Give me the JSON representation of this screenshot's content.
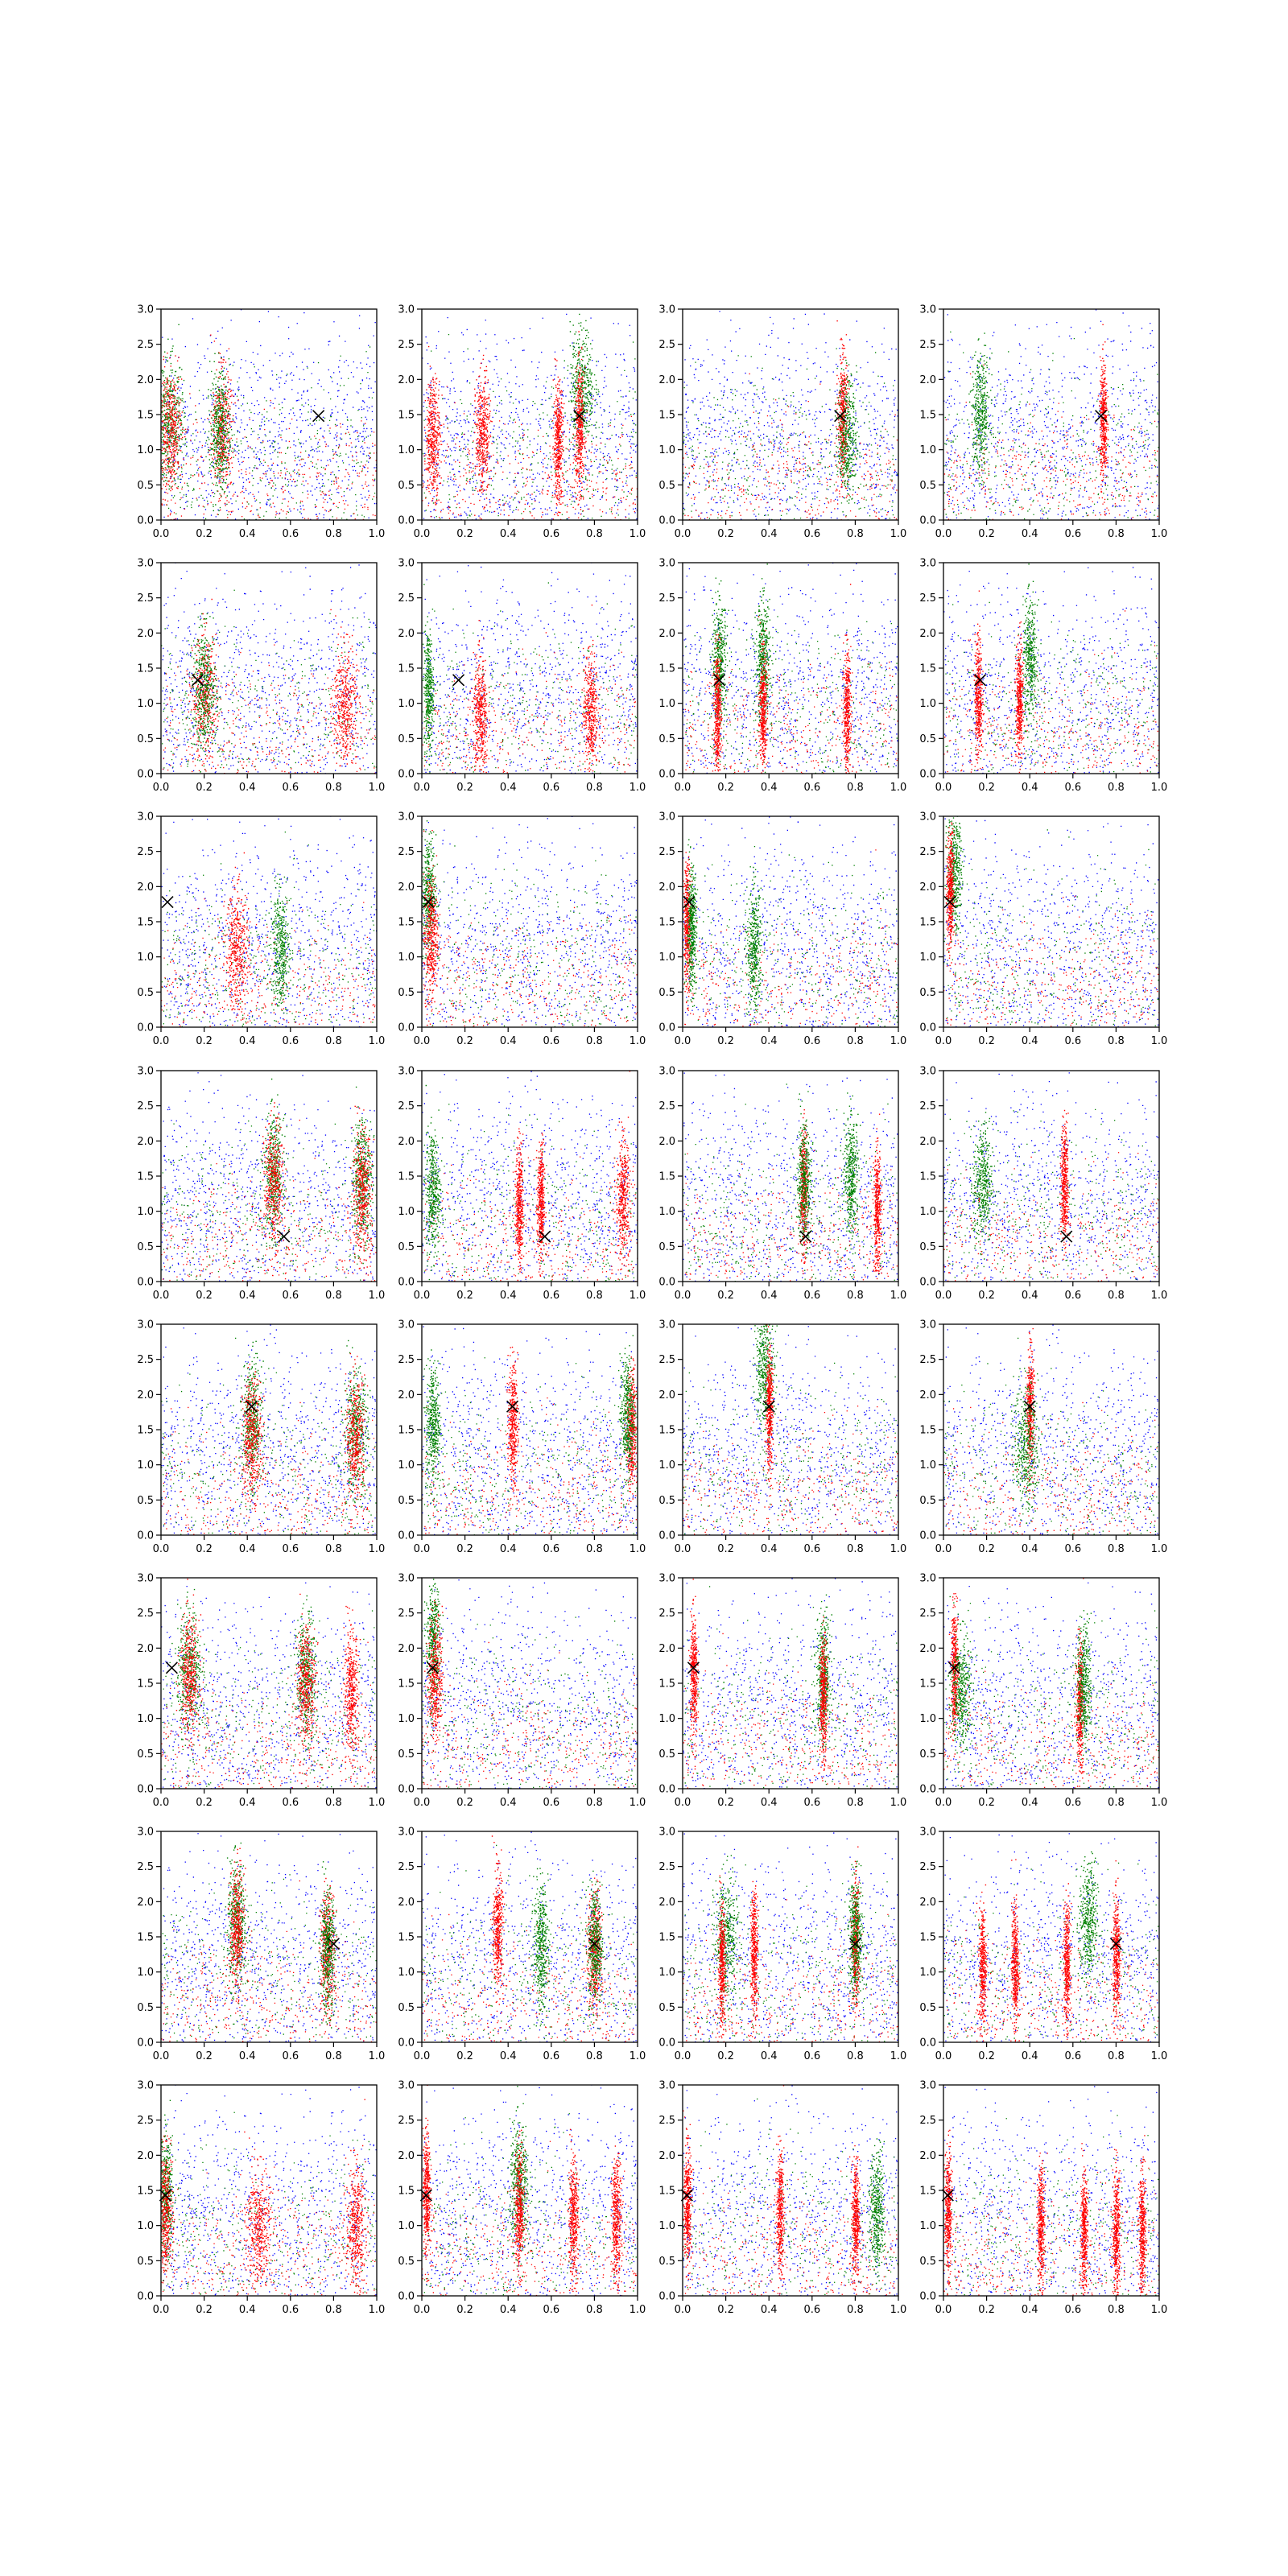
{
  "figure": {
    "rows": 8,
    "cols": 4,
    "colors": {
      "background": "#ffffff",
      "blue": "#0000ff",
      "green": "#008000",
      "red": "#ff0000",
      "marker": "#000000",
      "axes": "#000000"
    }
  },
  "chart_data": {
    "type": "scatter",
    "xlim": [
      0,
      1.0
    ],
    "ylim": [
      0,
      3.0
    ],
    "grid": false,
    "legend": "none",
    "xticks": [
      "0.0",
      "0.2",
      "0.4",
      "0.6",
      "0.8",
      "1.0"
    ],
    "yticks": [
      "0.0",
      "0.5",
      "1.0",
      "1.5",
      "2.0",
      "2.5",
      "3.0"
    ],
    "series_colors": [
      "blue",
      "green",
      "red"
    ],
    "note_points": "each panel shows dense random scatter in blue, green and red; vertical clusters listed per panel; black x marker per row",
    "panels": [
      {
        "row": 0,
        "col": 0,
        "marker": [
          0.73,
          1.48
        ],
        "clusters": [
          {
            "x": 0.04,
            "y": 1.4,
            "c": "green",
            "w": 0.06
          },
          {
            "x": 0.04,
            "y": 1.3,
            "c": "red",
            "w": 0.05
          },
          {
            "x": 0.28,
            "y": 1.3,
            "c": "red",
            "w": 0.04
          },
          {
            "x": 0.27,
            "y": 1.3,
            "c": "green",
            "w": 0.04
          }
        ]
      },
      {
        "row": 0,
        "col": 1,
        "marker": [
          0.73,
          1.48
        ],
        "clusters": [
          {
            "x": 0.74,
            "y": 1.9,
            "c": "green",
            "w": 0.05
          },
          {
            "x": 0.73,
            "y": 1.3,
            "c": "red",
            "w": 0.02
          },
          {
            "x": 0.28,
            "y": 1.2,
            "c": "red",
            "w": 0.03
          },
          {
            "x": 0.05,
            "y": 1.2,
            "c": "red",
            "w": 0.03
          },
          {
            "x": 0.63,
            "y": 1.1,
            "c": "red",
            "w": 0.02
          }
        ]
      },
      {
        "row": 0,
        "col": 2,
        "marker": [
          0.73,
          1.48
        ],
        "clusters": [
          {
            "x": 0.74,
            "y": 1.5,
            "c": "red",
            "w": 0.02
          },
          {
            "x": 0.76,
            "y": 1.2,
            "c": "green",
            "w": 0.04
          }
        ]
      },
      {
        "row": 0,
        "col": 3,
        "marker": [
          0.73,
          1.48
        ],
        "clusters": [
          {
            "x": 0.74,
            "y": 1.4,
            "c": "red",
            "w": 0.015
          },
          {
            "x": 0.17,
            "y": 1.5,
            "c": "green",
            "w": 0.04
          }
        ]
      },
      {
        "row": 1,
        "col": 0,
        "marker": [
          0.17,
          1.33
        ],
        "clusters": [
          {
            "x": 0.2,
            "y": 1.1,
            "c": "red",
            "w": 0.05
          },
          {
            "x": 0.2,
            "y": 1.2,
            "c": "green",
            "w": 0.05
          },
          {
            "x": 0.85,
            "y": 1.0,
            "c": "red",
            "w": 0.05
          }
        ]
      },
      {
        "row": 1,
        "col": 1,
        "marker": [
          0.17,
          1.33
        ],
        "clusters": [
          {
            "x": 0.03,
            "y": 1.2,
            "c": "green",
            "w": 0.02
          },
          {
            "x": 0.78,
            "y": 0.9,
            "c": "red",
            "w": 0.03
          },
          {
            "x": 0.27,
            "y": 0.8,
            "c": "red",
            "w": 0.03
          }
        ]
      },
      {
        "row": 1,
        "col": 2,
        "marker": [
          0.17,
          1.33
        ],
        "clusters": [
          {
            "x": 0.17,
            "y": 1.6,
            "c": "green",
            "w": 0.03
          },
          {
            "x": 0.37,
            "y": 1.6,
            "c": "green",
            "w": 0.03
          },
          {
            "x": 0.16,
            "y": 0.9,
            "c": "red",
            "w": 0.015
          },
          {
            "x": 0.37,
            "y": 0.9,
            "c": "red",
            "w": 0.015
          },
          {
            "x": 0.76,
            "y": 0.9,
            "c": "red",
            "w": 0.015
          }
        ]
      },
      {
        "row": 1,
        "col": 3,
        "marker": [
          0.17,
          1.33
        ],
        "clusters": [
          {
            "x": 0.16,
            "y": 1.1,
            "c": "red",
            "w": 0.015
          },
          {
            "x": 0.4,
            "y": 1.6,
            "c": "green",
            "w": 0.03
          },
          {
            "x": 0.35,
            "y": 1.0,
            "c": "red",
            "w": 0.015
          }
        ]
      },
      {
        "row": 2,
        "col": 0,
        "marker": [
          0.03,
          1.78
        ],
        "clusters": [
          {
            "x": 0.35,
            "y": 1.1,
            "c": "red",
            "w": 0.05
          },
          {
            "x": 0.55,
            "y": 1.1,
            "c": "green",
            "w": 0.04
          }
        ]
      },
      {
        "row": 2,
        "col": 1,
        "marker": [
          0.03,
          1.78
        ],
        "clusters": [
          {
            "x": 0.03,
            "y": 1.9,
            "c": "green",
            "w": 0.03
          },
          {
            "x": 0.04,
            "y": 1.3,
            "c": "red",
            "w": 0.03
          }
        ]
      },
      {
        "row": 2,
        "col": 2,
        "marker": [
          0.03,
          1.78
        ],
        "clusters": [
          {
            "x": 0.02,
            "y": 1.5,
            "c": "red",
            "w": 0.015
          },
          {
            "x": 0.04,
            "y": 1.4,
            "c": "green",
            "w": 0.02
          },
          {
            "x": 0.33,
            "y": 1.1,
            "c": "green",
            "w": 0.03
          }
        ]
      },
      {
        "row": 2,
        "col": 3,
        "marker": [
          0.03,
          1.78
        ],
        "clusters": [
          {
            "x": 0.05,
            "y": 2.3,
            "c": "green",
            "w": 0.03
          },
          {
            "x": 0.03,
            "y": 1.9,
            "c": "red",
            "w": 0.015
          }
        ]
      },
      {
        "row": 3,
        "col": 0,
        "marker": [
          0.57,
          0.64
        ],
        "clusters": [
          {
            "x": 0.52,
            "y": 1.5,
            "c": "green",
            "w": 0.04
          },
          {
            "x": 0.52,
            "y": 1.4,
            "c": "red",
            "w": 0.04
          },
          {
            "x": 0.93,
            "y": 1.5,
            "c": "green",
            "w": 0.04
          },
          {
            "x": 0.93,
            "y": 1.3,
            "c": "red",
            "w": 0.04
          }
        ]
      },
      {
        "row": 3,
        "col": 1,
        "marker": [
          0.57,
          0.64
        ],
        "clusters": [
          {
            "x": 0.93,
            "y": 1.2,
            "c": "red",
            "w": 0.03
          },
          {
            "x": 0.45,
            "y": 1.1,
            "c": "red",
            "w": 0.015
          },
          {
            "x": 0.55,
            "y": 1.1,
            "c": "red",
            "w": 0.015
          },
          {
            "x": 0.05,
            "y": 1.3,
            "c": "green",
            "w": 0.03
          }
        ]
      },
      {
        "row": 3,
        "col": 2,
        "marker": [
          0.57,
          0.64
        ],
        "clusters": [
          {
            "x": 0.56,
            "y": 1.3,
            "c": "red",
            "w": 0.015
          },
          {
            "x": 0.56,
            "y": 1.4,
            "c": "green",
            "w": 0.03
          },
          {
            "x": 0.78,
            "y": 1.5,
            "c": "green",
            "w": 0.03
          },
          {
            "x": 0.9,
            "y": 1.0,
            "c": "red",
            "w": 0.015
          }
        ]
      },
      {
        "row": 3,
        "col": 3,
        "marker": [
          0.57,
          0.64
        ],
        "clusters": [
          {
            "x": 0.56,
            "y": 1.4,
            "c": "red",
            "w": 0.015
          },
          {
            "x": 0.18,
            "y": 1.4,
            "c": "green",
            "w": 0.04
          }
        ]
      },
      {
        "row": 4,
        "col": 0,
        "marker": [
          0.42,
          1.83
        ],
        "clusters": [
          {
            "x": 0.42,
            "y": 1.6,
            "c": "green",
            "w": 0.04
          },
          {
            "x": 0.42,
            "y": 1.4,
            "c": "red",
            "w": 0.04
          },
          {
            "x": 0.9,
            "y": 1.5,
            "c": "green",
            "w": 0.05
          },
          {
            "x": 0.9,
            "y": 1.4,
            "c": "red",
            "w": 0.04
          }
        ]
      },
      {
        "row": 4,
        "col": 1,
        "marker": [
          0.42,
          1.83
        ],
        "clusters": [
          {
            "x": 0.42,
            "y": 1.6,
            "c": "red",
            "w": 0.02
          },
          {
            "x": 0.97,
            "y": 1.5,
            "c": "red",
            "w": 0.02
          },
          {
            "x": 0.05,
            "y": 1.6,
            "c": "green",
            "w": 0.03
          },
          {
            "x": 0.95,
            "y": 1.7,
            "c": "green",
            "w": 0.03
          }
        ]
      },
      {
        "row": 4,
        "col": 2,
        "marker": [
          0.4,
          1.83
        ],
        "clusters": [
          {
            "x": 0.38,
            "y": 2.4,
            "c": "green",
            "w": 0.04
          },
          {
            "x": 0.4,
            "y": 1.8,
            "c": "red",
            "w": 0.015
          }
        ]
      },
      {
        "row": 4,
        "col": 3,
        "marker": [
          0.4,
          1.83
        ],
        "clusters": [
          {
            "x": 0.4,
            "y": 1.8,
            "c": "red",
            "w": 0.015
          },
          {
            "x": 0.38,
            "y": 1.3,
            "c": "green",
            "w": 0.05
          }
        ]
      },
      {
        "row": 5,
        "col": 0,
        "marker": [
          0.05,
          1.72
        ],
        "clusters": [
          {
            "x": 0.13,
            "y": 1.7,
            "c": "green",
            "w": 0.05
          },
          {
            "x": 0.13,
            "y": 1.6,
            "c": "red",
            "w": 0.04
          },
          {
            "x": 0.67,
            "y": 1.6,
            "c": "green",
            "w": 0.04
          },
          {
            "x": 0.67,
            "y": 1.5,
            "c": "red",
            "w": 0.04
          },
          {
            "x": 0.88,
            "y": 1.4,
            "c": "red",
            "w": 0.03
          }
        ]
      },
      {
        "row": 5,
        "col": 1,
        "marker": [
          0.05,
          1.72
        ],
        "clusters": [
          {
            "x": 0.05,
            "y": 2.1,
            "c": "green",
            "w": 0.03
          },
          {
            "x": 0.06,
            "y": 1.6,
            "c": "red",
            "w": 0.03
          }
        ]
      },
      {
        "row": 5,
        "col": 2,
        "marker": [
          0.05,
          1.72
        ],
        "clusters": [
          {
            "x": 0.05,
            "y": 1.6,
            "c": "red",
            "w": 0.015
          },
          {
            "x": 0.65,
            "y": 1.6,
            "c": "green",
            "w": 0.03
          },
          {
            "x": 0.65,
            "y": 1.3,
            "c": "red",
            "w": 0.015
          }
        ]
      },
      {
        "row": 5,
        "col": 3,
        "marker": [
          0.05,
          1.72
        ],
        "clusters": [
          {
            "x": 0.05,
            "y": 1.7,
            "c": "red",
            "w": 0.015
          },
          {
            "x": 0.08,
            "y": 1.4,
            "c": "green",
            "w": 0.04
          },
          {
            "x": 0.63,
            "y": 1.2,
            "c": "red",
            "w": 0.015
          },
          {
            "x": 0.65,
            "y": 1.5,
            "c": "green",
            "w": 0.03
          }
        ]
      },
      {
        "row": 6,
        "col": 0,
        "marker": [
          0.8,
          1.4
        ],
        "clusters": [
          {
            "x": 0.35,
            "y": 1.7,
            "c": "green",
            "w": 0.04
          },
          {
            "x": 0.35,
            "y": 1.6,
            "c": "red",
            "w": 0.03
          },
          {
            "x": 0.77,
            "y": 1.3,
            "c": "red",
            "w": 0.03
          },
          {
            "x": 0.77,
            "y": 1.3,
            "c": "green",
            "w": 0.03
          }
        ]
      },
      {
        "row": 6,
        "col": 1,
        "marker": [
          0.8,
          1.4
        ],
        "clusters": [
          {
            "x": 0.35,
            "y": 1.6,
            "c": "red",
            "w": 0.02
          },
          {
            "x": 0.55,
            "y": 1.4,
            "c": "green",
            "w": 0.03
          },
          {
            "x": 0.8,
            "y": 1.3,
            "c": "red",
            "w": 0.03
          },
          {
            "x": 0.8,
            "y": 1.4,
            "c": "green",
            "w": 0.03
          }
        ]
      },
      {
        "row": 6,
        "col": 2,
        "marker": [
          0.8,
          1.4
        ],
        "clusters": [
          {
            "x": 0.2,
            "y": 1.5,
            "c": "green",
            "w": 0.05
          },
          {
            "x": 0.33,
            "y": 1.3,
            "c": "red",
            "w": 0.015
          },
          {
            "x": 0.18,
            "y": 1.1,
            "c": "red",
            "w": 0.015
          },
          {
            "x": 0.8,
            "y": 1.4,
            "c": "red",
            "w": 0.015
          },
          {
            "x": 0.8,
            "y": 1.5,
            "c": "green",
            "w": 0.03
          }
        ]
      },
      {
        "row": 6,
        "col": 3,
        "marker": [
          0.8,
          1.4
        ],
        "clusters": [
          {
            "x": 0.67,
            "y": 1.7,
            "c": "green",
            "w": 0.04
          },
          {
            "x": 0.18,
            "y": 1.1,
            "c": "red",
            "w": 0.015
          },
          {
            "x": 0.33,
            "y": 1.1,
            "c": "red",
            "w": 0.015
          },
          {
            "x": 0.8,
            "y": 1.2,
            "c": "red",
            "w": 0.015
          },
          {
            "x": 0.57,
            "y": 1.1,
            "c": "red",
            "w": 0.015
          }
        ]
      },
      {
        "row": 7,
        "col": 0,
        "marker": [
          0.02,
          1.43
        ],
        "clusters": [
          {
            "x": 0.02,
            "y": 1.4,
            "c": "green",
            "w": 0.03
          },
          {
            "x": 0.02,
            "y": 1.2,
            "c": "red",
            "w": 0.03
          },
          {
            "x": 0.45,
            "y": 1.0,
            "c": "red",
            "w": 0.05
          },
          {
            "x": 0.9,
            "y": 1.0,
            "c": "red",
            "w": 0.04
          }
        ]
      },
      {
        "row": 7,
        "col": 1,
        "marker": [
          0.02,
          1.43
        ],
        "clusters": [
          {
            "x": 0.02,
            "y": 1.5,
            "c": "red",
            "w": 0.015
          },
          {
            "x": 0.45,
            "y": 1.6,
            "c": "green",
            "w": 0.04
          },
          {
            "x": 0.45,
            "y": 1.2,
            "c": "red",
            "w": 0.02
          },
          {
            "x": 0.9,
            "y": 1.1,
            "c": "red",
            "w": 0.02
          },
          {
            "x": 0.7,
            "y": 1.1,
            "c": "red",
            "w": 0.02
          }
        ]
      },
      {
        "row": 7,
        "col": 2,
        "marker": [
          0.02,
          1.43
        ],
        "clusters": [
          {
            "x": 0.02,
            "y": 1.3,
            "c": "red",
            "w": 0.015
          },
          {
            "x": 0.45,
            "y": 1.2,
            "c": "red",
            "w": 0.015
          },
          {
            "x": 0.9,
            "y": 1.2,
            "c": "green",
            "w": 0.03
          },
          {
            "x": 0.8,
            "y": 1.1,
            "c": "red",
            "w": 0.015
          }
        ]
      },
      {
        "row": 7,
        "col": 3,
        "marker": [
          0.02,
          1.43
        ],
        "clusters": [
          {
            "x": 0.02,
            "y": 1.2,
            "c": "red",
            "w": 0.015
          },
          {
            "x": 0.45,
            "y": 1.0,
            "c": "red",
            "w": 0.015
          },
          {
            "x": 0.65,
            "y": 0.9,
            "c": "red",
            "w": 0.015
          },
          {
            "x": 0.8,
            "y": 0.9,
            "c": "red",
            "w": 0.015
          },
          {
            "x": 0.92,
            "y": 0.9,
            "c": "red",
            "w": 0.015
          }
        ]
      }
    ]
  }
}
